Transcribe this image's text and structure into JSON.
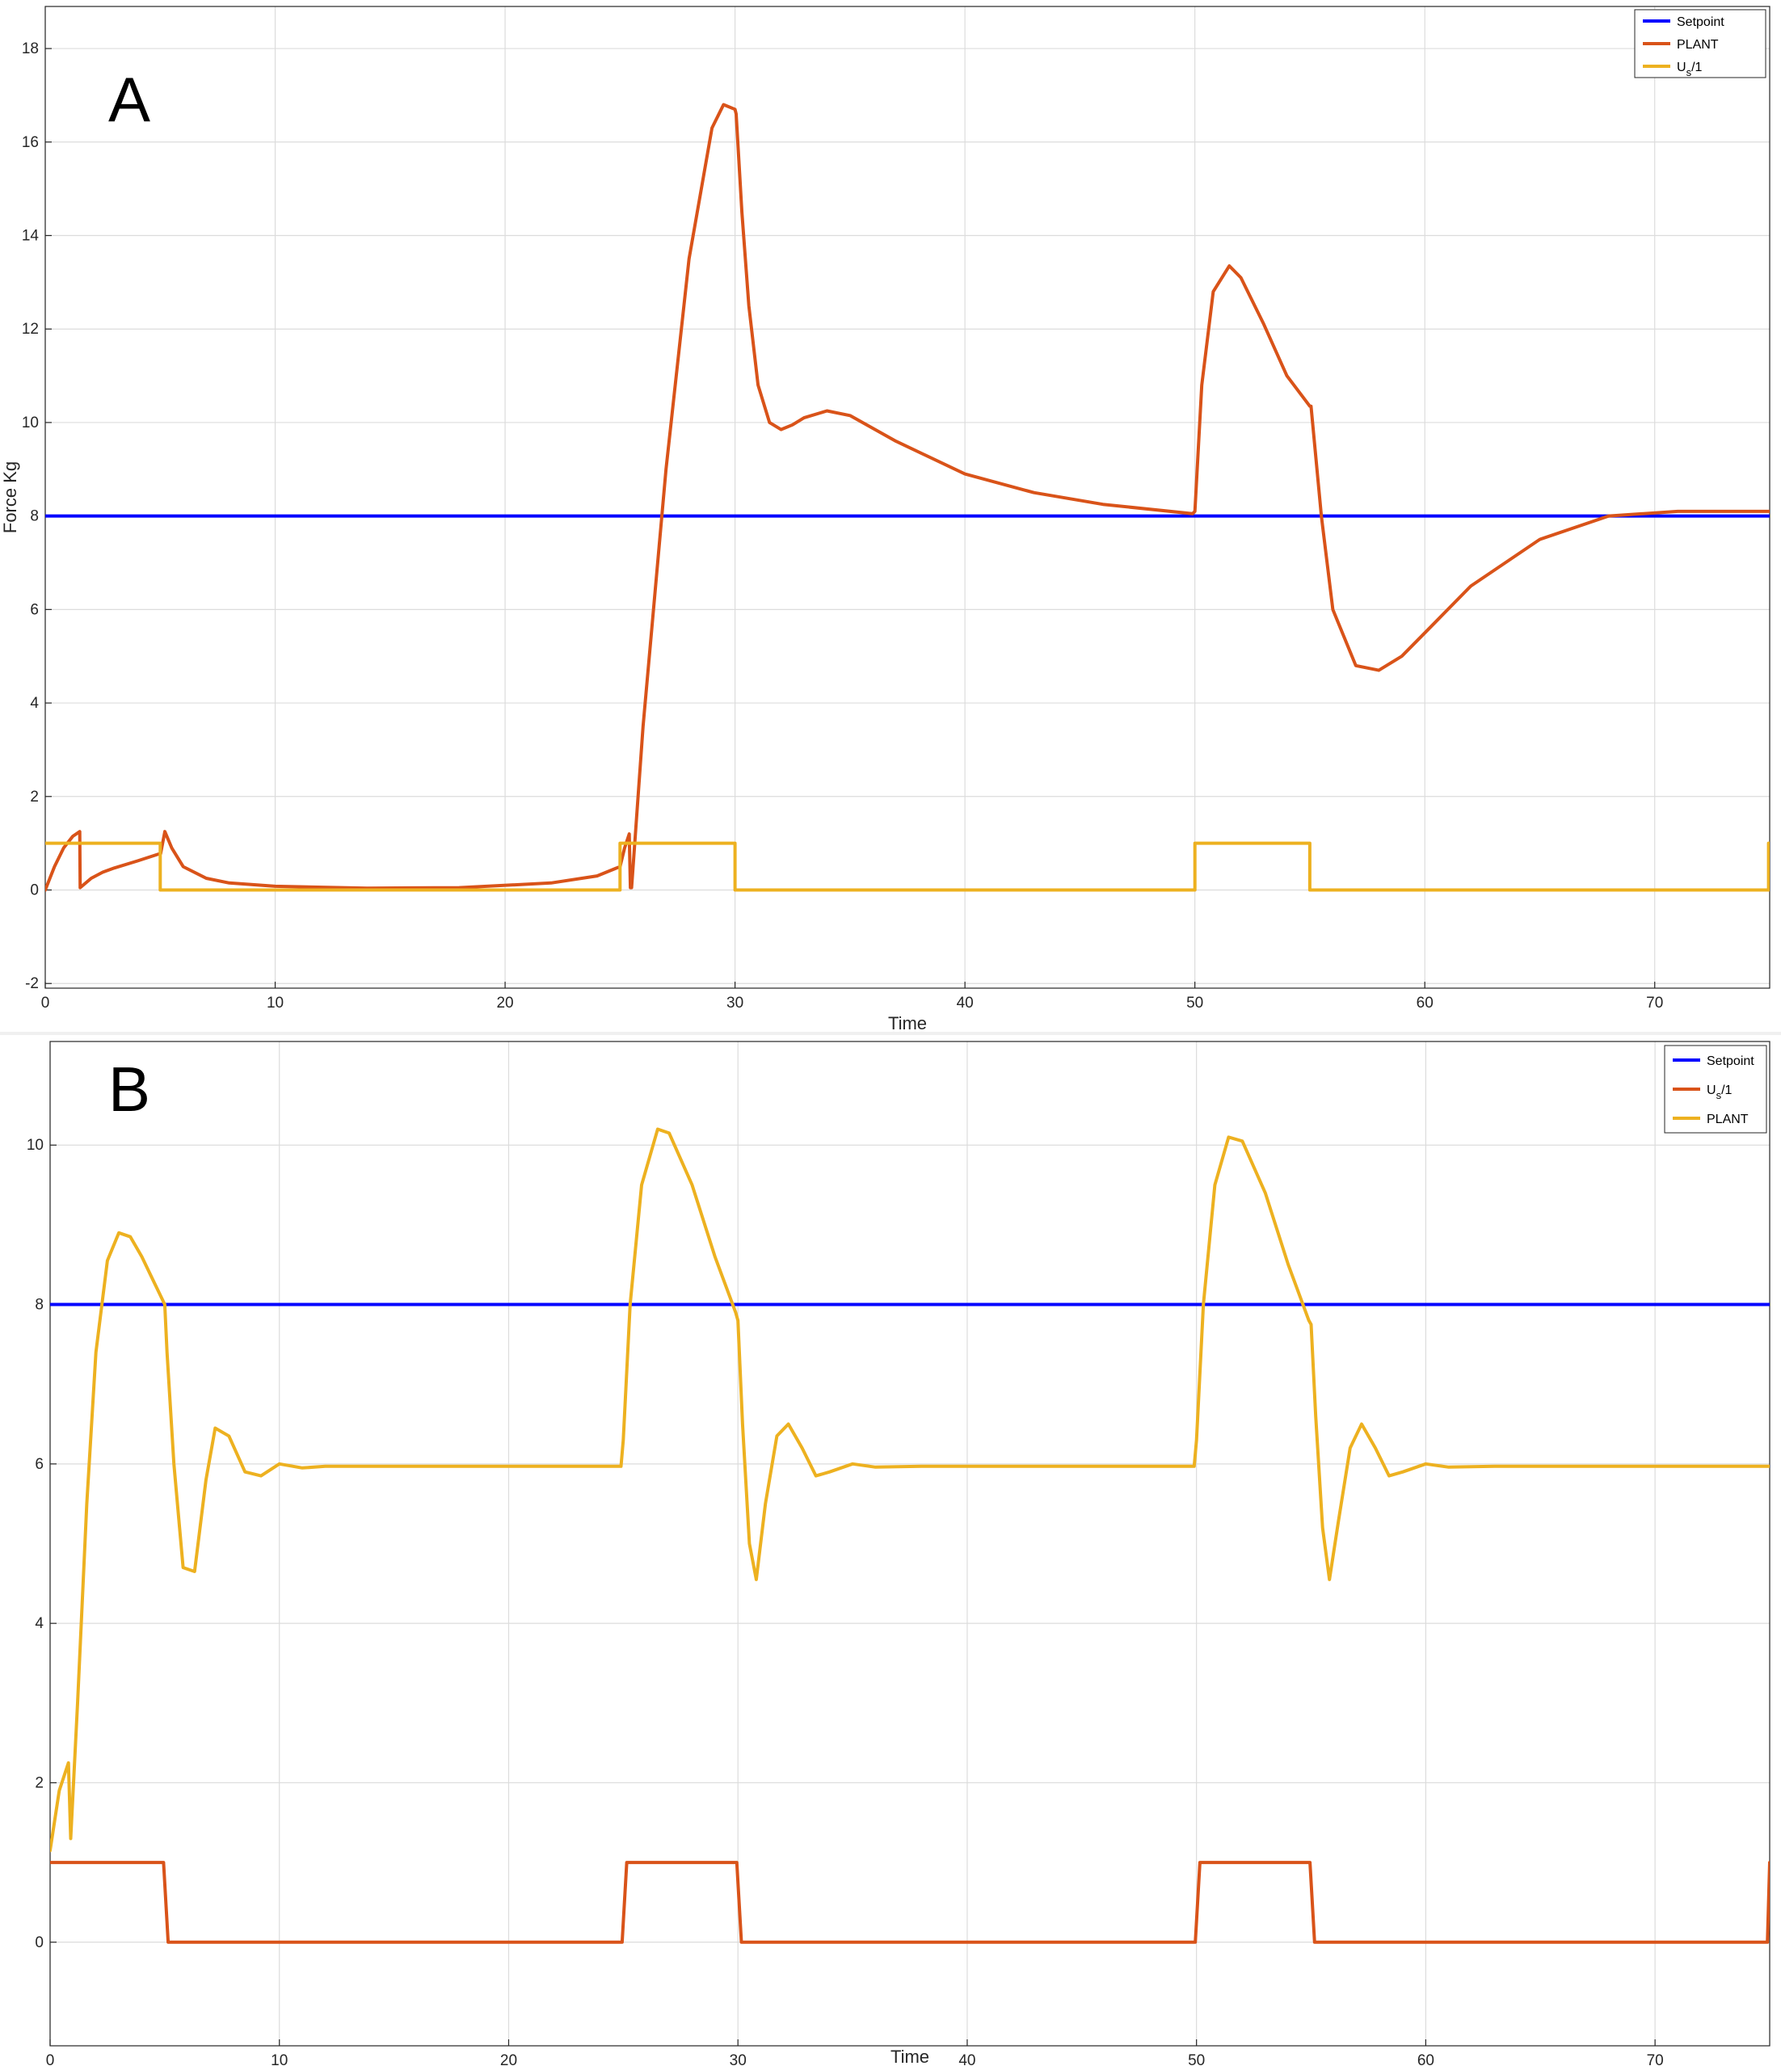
{
  "chart_data": [
    {
      "type": "line",
      "panel_label": "A",
      "title": "",
      "xlabel": "Time",
      "ylabel": "Force Kg",
      "xlim": [
        0,
        75
      ],
      "ylim": [
        -2.1,
        18.9
      ],
      "xticks": [
        0,
        10,
        20,
        30,
        40,
        50,
        60,
        70
      ],
      "yticks": [
        -2,
        0,
        2,
        4,
        6,
        8,
        10,
        12,
        14,
        16,
        18
      ],
      "grid": true,
      "legend_position": "top-right",
      "legend": [
        {
          "label": "Setpoint",
          "color": "#0000ff"
        },
        {
          "label": "PLANT",
          "color": "#d95319"
        },
        {
          "label": "U_s/1",
          "color": "#edb120"
        }
      ],
      "series": [
        {
          "name": "Setpoint",
          "color": "#0000ff",
          "x": [
            0,
            75
          ],
          "y": [
            8,
            8
          ]
        },
        {
          "name": "PLANT",
          "color": "#d95319",
          "x": [
            0,
            0.4,
            0.8,
            1.2,
            1.5,
            1.52,
            2.0,
            2.5,
            3.0,
            4.0,
            5.0,
            5.02,
            5.2,
            5.5,
            6.0,
            7.0,
            8.0,
            10,
            14,
            18,
            22,
            24,
            25.0,
            25.2,
            25.4,
            25.45,
            25.5,
            26.0,
            27.0,
            28.0,
            29.0,
            29.5,
            30.0,
            30.05,
            30.3,
            30.6,
            31.0,
            31.5,
            32.0,
            32.5,
            33.0,
            34.0,
            35.0,
            37.0,
            40.0,
            43.0,
            46.0,
            49.9,
            50.0,
            50.3,
            50.8,
            51.5,
            52.0,
            53.0,
            54.0,
            55.0,
            55.05,
            55.5,
            56.0,
            57.0,
            58.0,
            59.0,
            60.0,
            62.0,
            65.0,
            68.0,
            71.0,
            75.0
          ],
          "y": [
            0,
            0.5,
            0.9,
            1.15,
            1.25,
            0.05,
            0.25,
            0.38,
            0.47,
            0.62,
            0.78,
            0.78,
            1.25,
            0.9,
            0.5,
            0.25,
            0.15,
            0.08,
            0.04,
            0.05,
            0.15,
            0.3,
            0.5,
            0.9,
            1.2,
            0.05,
            0.05,
            3.5,
            9.0,
            13.5,
            16.3,
            16.8,
            16.7,
            16.6,
            14.5,
            12.5,
            10.8,
            10.0,
            9.85,
            9.95,
            10.1,
            10.25,
            10.15,
            9.6,
            8.9,
            8.5,
            8.25,
            8.05,
            8.1,
            10.8,
            12.8,
            13.35,
            13.1,
            12.1,
            11.0,
            10.35,
            10.35,
            8.0,
            6.0,
            4.8,
            4.7,
            5.0,
            5.5,
            6.5,
            7.5,
            8.0,
            8.1,
            8.1
          ]
        },
        {
          "name": "U_s/1",
          "color": "#edb120",
          "x": [
            0,
            5.0,
            5.0,
            25.0,
            25.0,
            30.0,
            30.0,
            50.0,
            50.0,
            55.0,
            55.0,
            74.95,
            74.95,
            75.0
          ],
          "y": [
            1,
            1,
            0,
            0,
            1,
            1,
            0,
            0,
            1,
            1,
            0,
            0,
            1,
            1
          ]
        }
      ]
    },
    {
      "type": "line",
      "panel_label": "B",
      "title": "",
      "xlabel": "Time",
      "ylabel": "",
      "xlim": [
        0,
        75
      ],
      "ylim": [
        -1.3,
        11.3
      ],
      "xticks": [
        0,
        10,
        20,
        30,
        40,
        50,
        60,
        70
      ],
      "yticks": [
        0,
        2,
        4,
        6,
        8,
        10
      ],
      "grid": true,
      "legend_position": "top-right",
      "legend": [
        {
          "label": "Setpoint",
          "color": "#0000ff"
        },
        {
          "label": "U_s/1",
          "color": "#d95319"
        },
        {
          "label": "PLANT",
          "color": "#edb120"
        }
      ],
      "series": [
        {
          "name": "Setpoint",
          "color": "#0000ff",
          "x": [
            0,
            75
          ],
          "y": [
            8,
            8
          ]
        },
        {
          "name": "U_s/1",
          "color": "#d95319",
          "x": [
            0,
            4.95,
            5.15,
            24.95,
            25.15,
            29.95,
            30.15,
            49.95,
            50.15,
            54.95,
            55.15,
            74.9,
            75.0
          ],
          "y": [
            1,
            1,
            0,
            0,
            1,
            1,
            0,
            0,
            1,
            1,
            0,
            0,
            1
          ]
        },
        {
          "name": "PLANT",
          "color": "#edb120",
          "x": [
            0,
            0.4,
            0.8,
            0.9,
            1.2,
            1.6,
            2.0,
            2.5,
            3.0,
            3.5,
            4.0,
            4.5,
            5.0,
            5.1,
            5.4,
            5.8,
            6.3,
            6.8,
            7.2,
            7.8,
            8.5,
            9.2,
            10,
            11,
            12,
            14,
            18,
            22,
            24.9,
            25.0,
            25.3,
            25.8,
            26.5,
            27.0,
            28.0,
            29.0,
            29.9,
            30.0,
            30.2,
            30.5,
            30.8,
            31.2,
            31.7,
            32.2,
            32.8,
            33.4,
            34.0,
            35.0,
            36.0,
            38.0,
            42.0,
            46.0,
            49.9,
            50.0,
            50.3,
            50.8,
            51.4,
            52.0,
            53.0,
            54.0,
            54.9,
            55.0,
            55.2,
            55.5,
            55.8,
            56.2,
            56.7,
            57.2,
            57.8,
            58.4,
            59.0,
            60.0,
            61.0,
            63.0,
            67.0,
            71.0,
            75.0
          ],
          "y": [
            1.15,
            1.9,
            2.25,
            1.3,
            3.0,
            5.5,
            7.4,
            8.55,
            8.9,
            8.85,
            8.6,
            8.3,
            8.0,
            7.4,
            6.0,
            4.7,
            4.65,
            5.8,
            6.45,
            6.35,
            5.9,
            5.85,
            6.0,
            5.95,
            5.97,
            5.97,
            5.97,
            5.97,
            5.97,
            6.3,
            8.0,
            9.5,
            10.2,
            10.15,
            9.5,
            8.6,
            7.9,
            7.8,
            6.5,
            5.0,
            4.55,
            5.5,
            6.35,
            6.5,
            6.2,
            5.85,
            5.9,
            6.0,
            5.96,
            5.97,
            5.97,
            5.97,
            5.97,
            6.3,
            8.0,
            9.5,
            10.1,
            10.05,
            9.4,
            8.5,
            7.8,
            7.75,
            6.6,
            5.2,
            4.55,
            5.3,
            6.2,
            6.5,
            6.2,
            5.85,
            5.9,
            6.0,
            5.96,
            5.97,
            5.97,
            5.97,
            5.97
          ]
        }
      ]
    }
  ]
}
